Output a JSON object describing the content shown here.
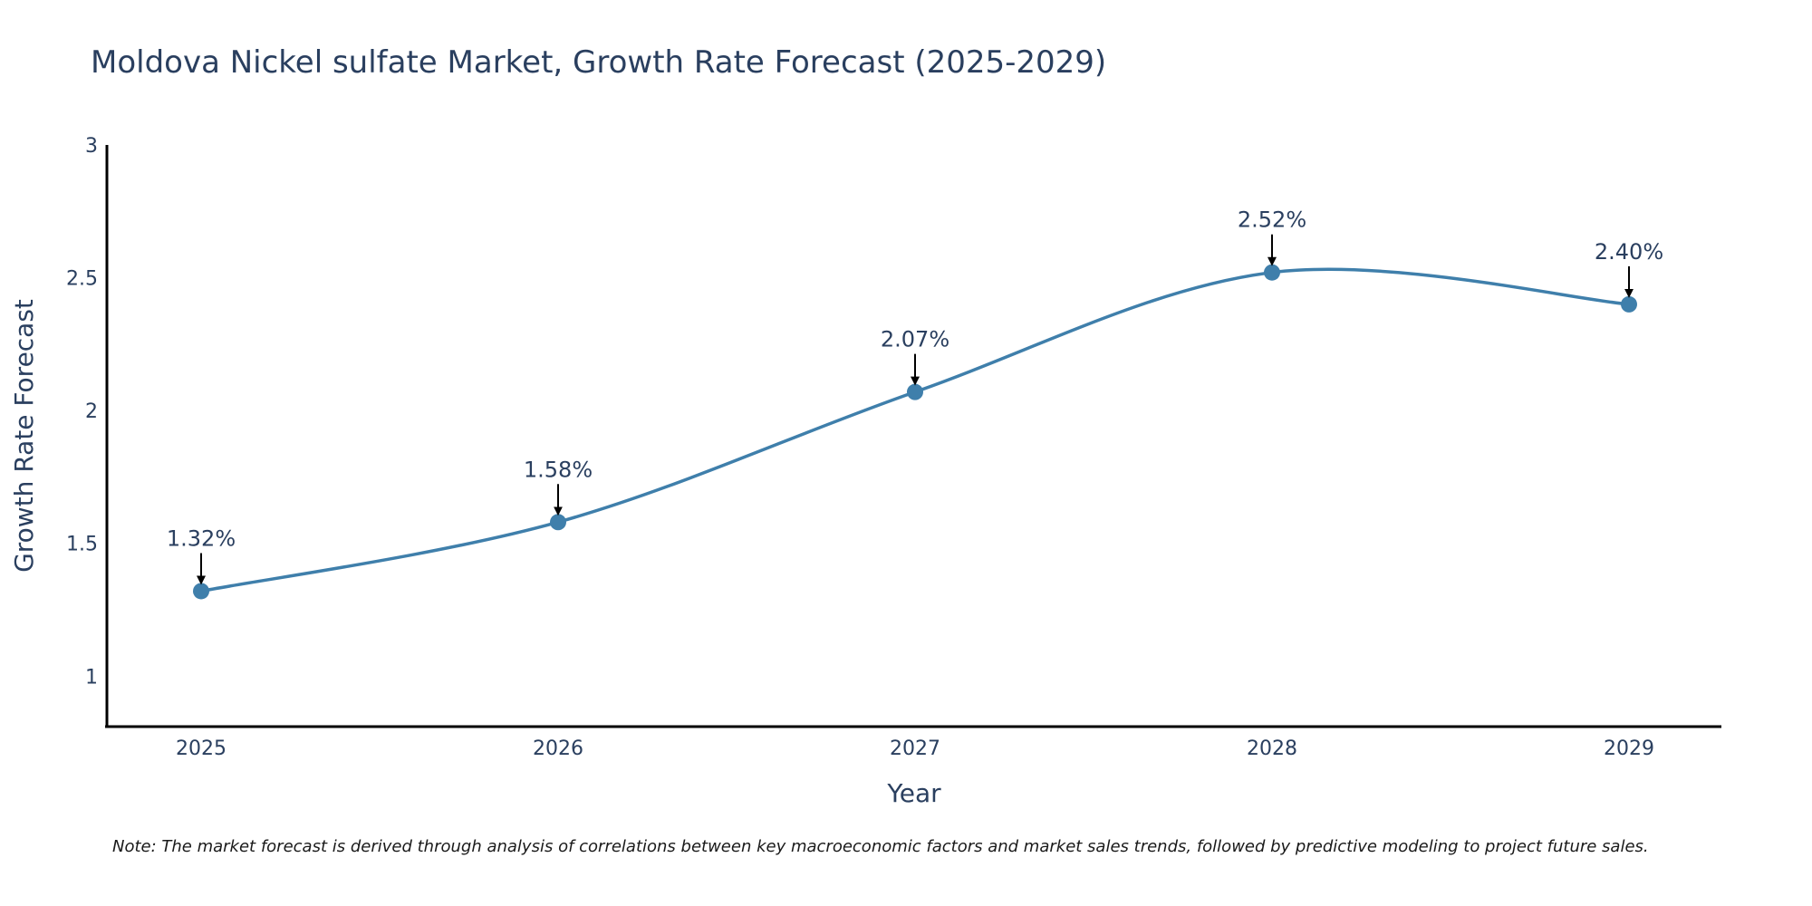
{
  "chart_data": {
    "type": "line",
    "title": "Moldova Nickel sulfate Market, Growth Rate Forecast (2025-2029)",
    "xlabel": "Year",
    "ylabel": "Growth Rate Forecast",
    "categories": [
      "2025",
      "2026",
      "2027",
      "2028",
      "2029"
    ],
    "values": [
      1.32,
      1.58,
      2.07,
      2.52,
      2.4
    ],
    "value_labels": [
      "1.32%",
      "1.58%",
      "2.07%",
      "2.52%",
      "2.40%"
    ],
    "ylim": [
      0.81,
      3.0
    ],
    "yticks": [
      1,
      1.5,
      2,
      2.5,
      3
    ],
    "ytick_labels": [
      "1",
      "1.5",
      "2",
      "2.5",
      "3"
    ],
    "grid": false,
    "line_shape": "spline",
    "series_color": "#3f7fab",
    "marker_color": "#3f7fab"
  },
  "note": "Note: The market forecast is derived through analysis of correlations between key macroeconomic factors and market sales trends, followed by predictive modeling to project future sales."
}
